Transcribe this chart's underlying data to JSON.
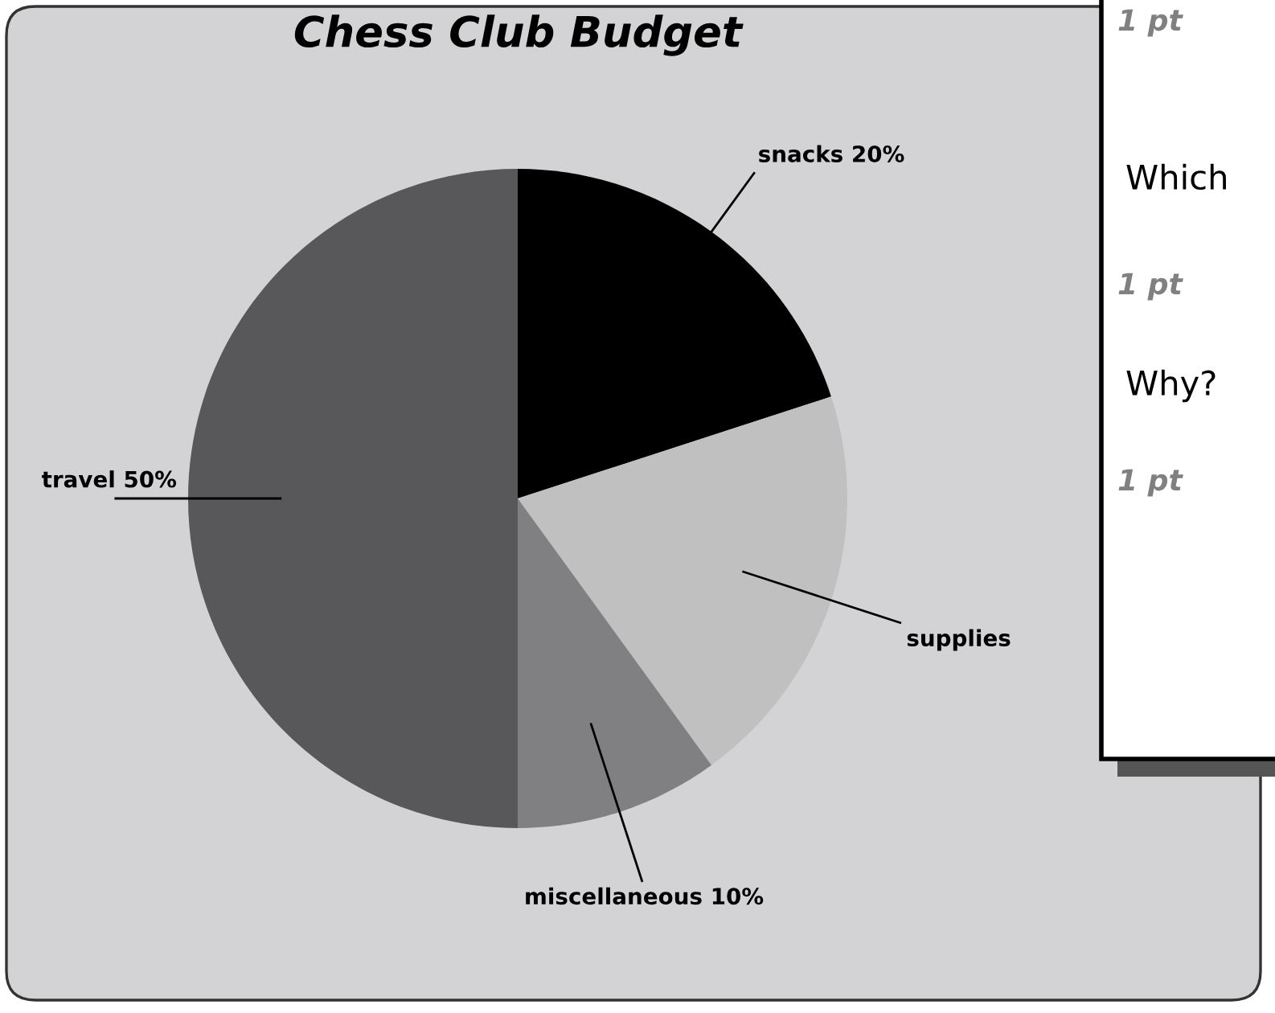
{
  "chart_data": {
    "type": "pie",
    "title": "Chess Club Budget",
    "categories": [
      "snacks 20%",
      "supplies",
      "miscellaneous 10%",
      "travel 50%"
    ],
    "values": [
      20,
      20,
      10,
      50
    ],
    "colors": [
      "#000000",
      "#c0c0c1",
      "#808082",
      "#58585a"
    ],
    "annotations": [
      "1 pt",
      "Which",
      "1 pt",
      "Why?",
      "1 pt"
    ]
  }
}
